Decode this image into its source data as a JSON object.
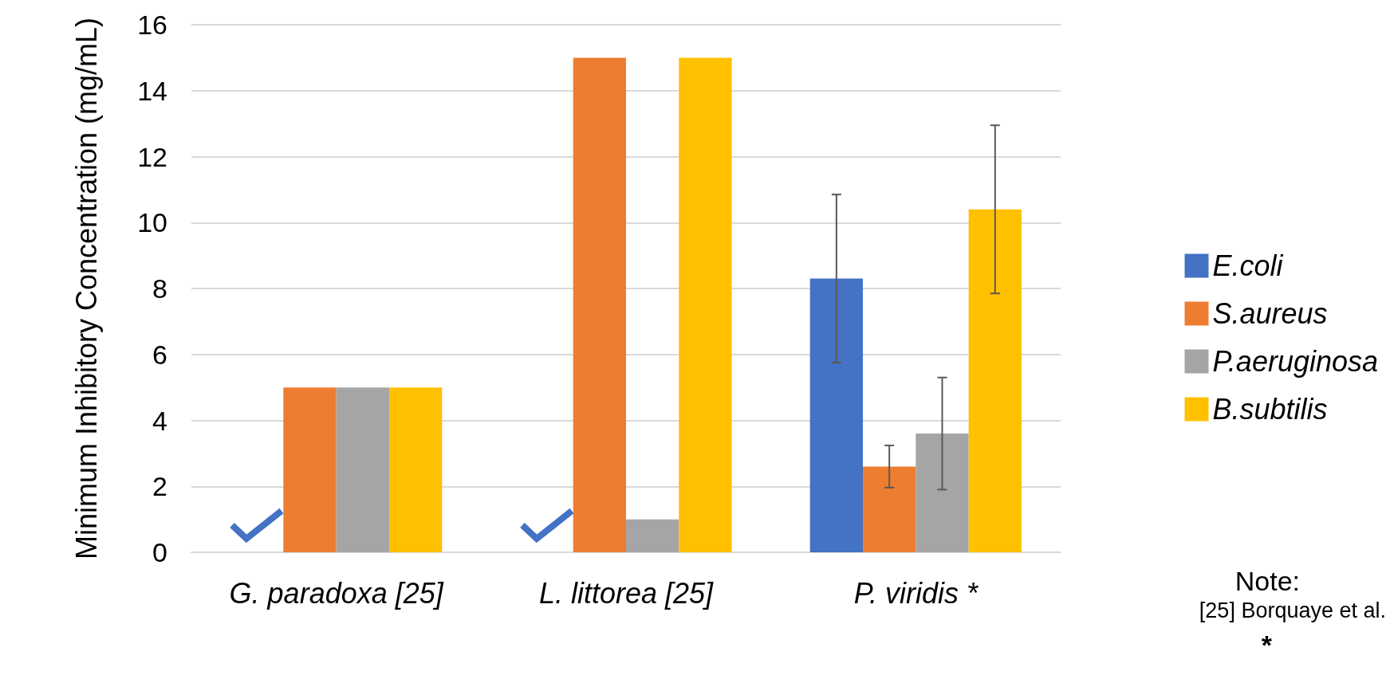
{
  "chart_data": {
    "type": "bar",
    "ylabel": "Minimum Inhibitory Concentration (mg/mL)",
    "categories": [
      "G. paradoxa [25]",
      "L. littorea [25]",
      "P. viridis *"
    ],
    "series": [
      {
        "name": "E.coli",
        "color": "#4472c4",
        "values": [
          null,
          null,
          8.3
        ],
        "errors": [
          null,
          null,
          2.55
        ]
      },
      {
        "name": "S.aureus",
        "color": "#ed7d31",
        "values": [
          5,
          15,
          2.6
        ],
        "errors": [
          null,
          null,
          0.64
        ]
      },
      {
        "name": "P.aeruginosa",
        "color": "#a5a5a5",
        "values": [
          5,
          1,
          3.6
        ],
        "errors": [
          null,
          null,
          1.7
        ]
      },
      {
        "name": "B.subtilis",
        "color": "#ffc000",
        "values": [
          5,
          15,
          10.4
        ],
        "errors": [
          null,
          null,
          2.55
        ]
      }
    ],
    "ylim": [
      0,
      16
    ],
    "yticks": [
      0,
      2,
      4,
      6,
      8,
      10,
      12,
      14,
      16
    ],
    "grid": "y",
    "legend": "right",
    "annotations": [
      "Note:",
      "[25] Borquaye et al.",
      "*"
    ]
  }
}
